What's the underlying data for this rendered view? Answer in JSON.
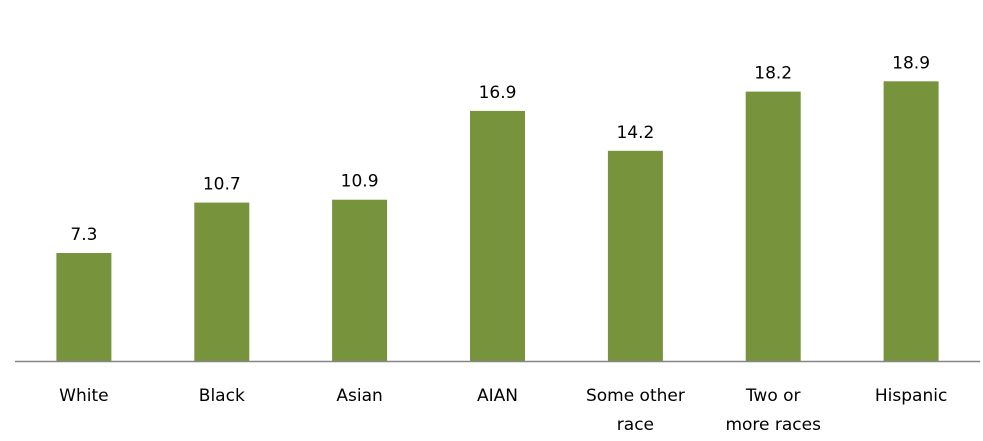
{
  "chart_data": {
    "type": "bar",
    "title": "",
    "xlabel": "",
    "ylabel": "",
    "categories": [
      "White",
      "Black",
      "Asian",
      "AIAN",
      "Some other race",
      "Two or more races",
      "Hispanic"
    ],
    "category_lines": [
      [
        "White"
      ],
      [
        "Black"
      ],
      [
        "Asian"
      ],
      [
        "AIAN"
      ],
      [
        "Some other",
        "race"
      ],
      [
        "Two or",
        "more races"
      ],
      [
        "Hispanic"
      ]
    ],
    "values": [
      7.3,
      10.7,
      10.9,
      16.9,
      14.2,
      18.2,
      18.9
    ],
    "value_labels": [
      "7.3",
      "10.7",
      "10.9",
      "16.9",
      "14.2",
      "18.2",
      "18.9"
    ],
    "ylim": [
      0,
      20
    ],
    "grid": false,
    "legend": "none",
    "colors": {
      "bar": "#77933C",
      "axis": "#868686"
    }
  }
}
